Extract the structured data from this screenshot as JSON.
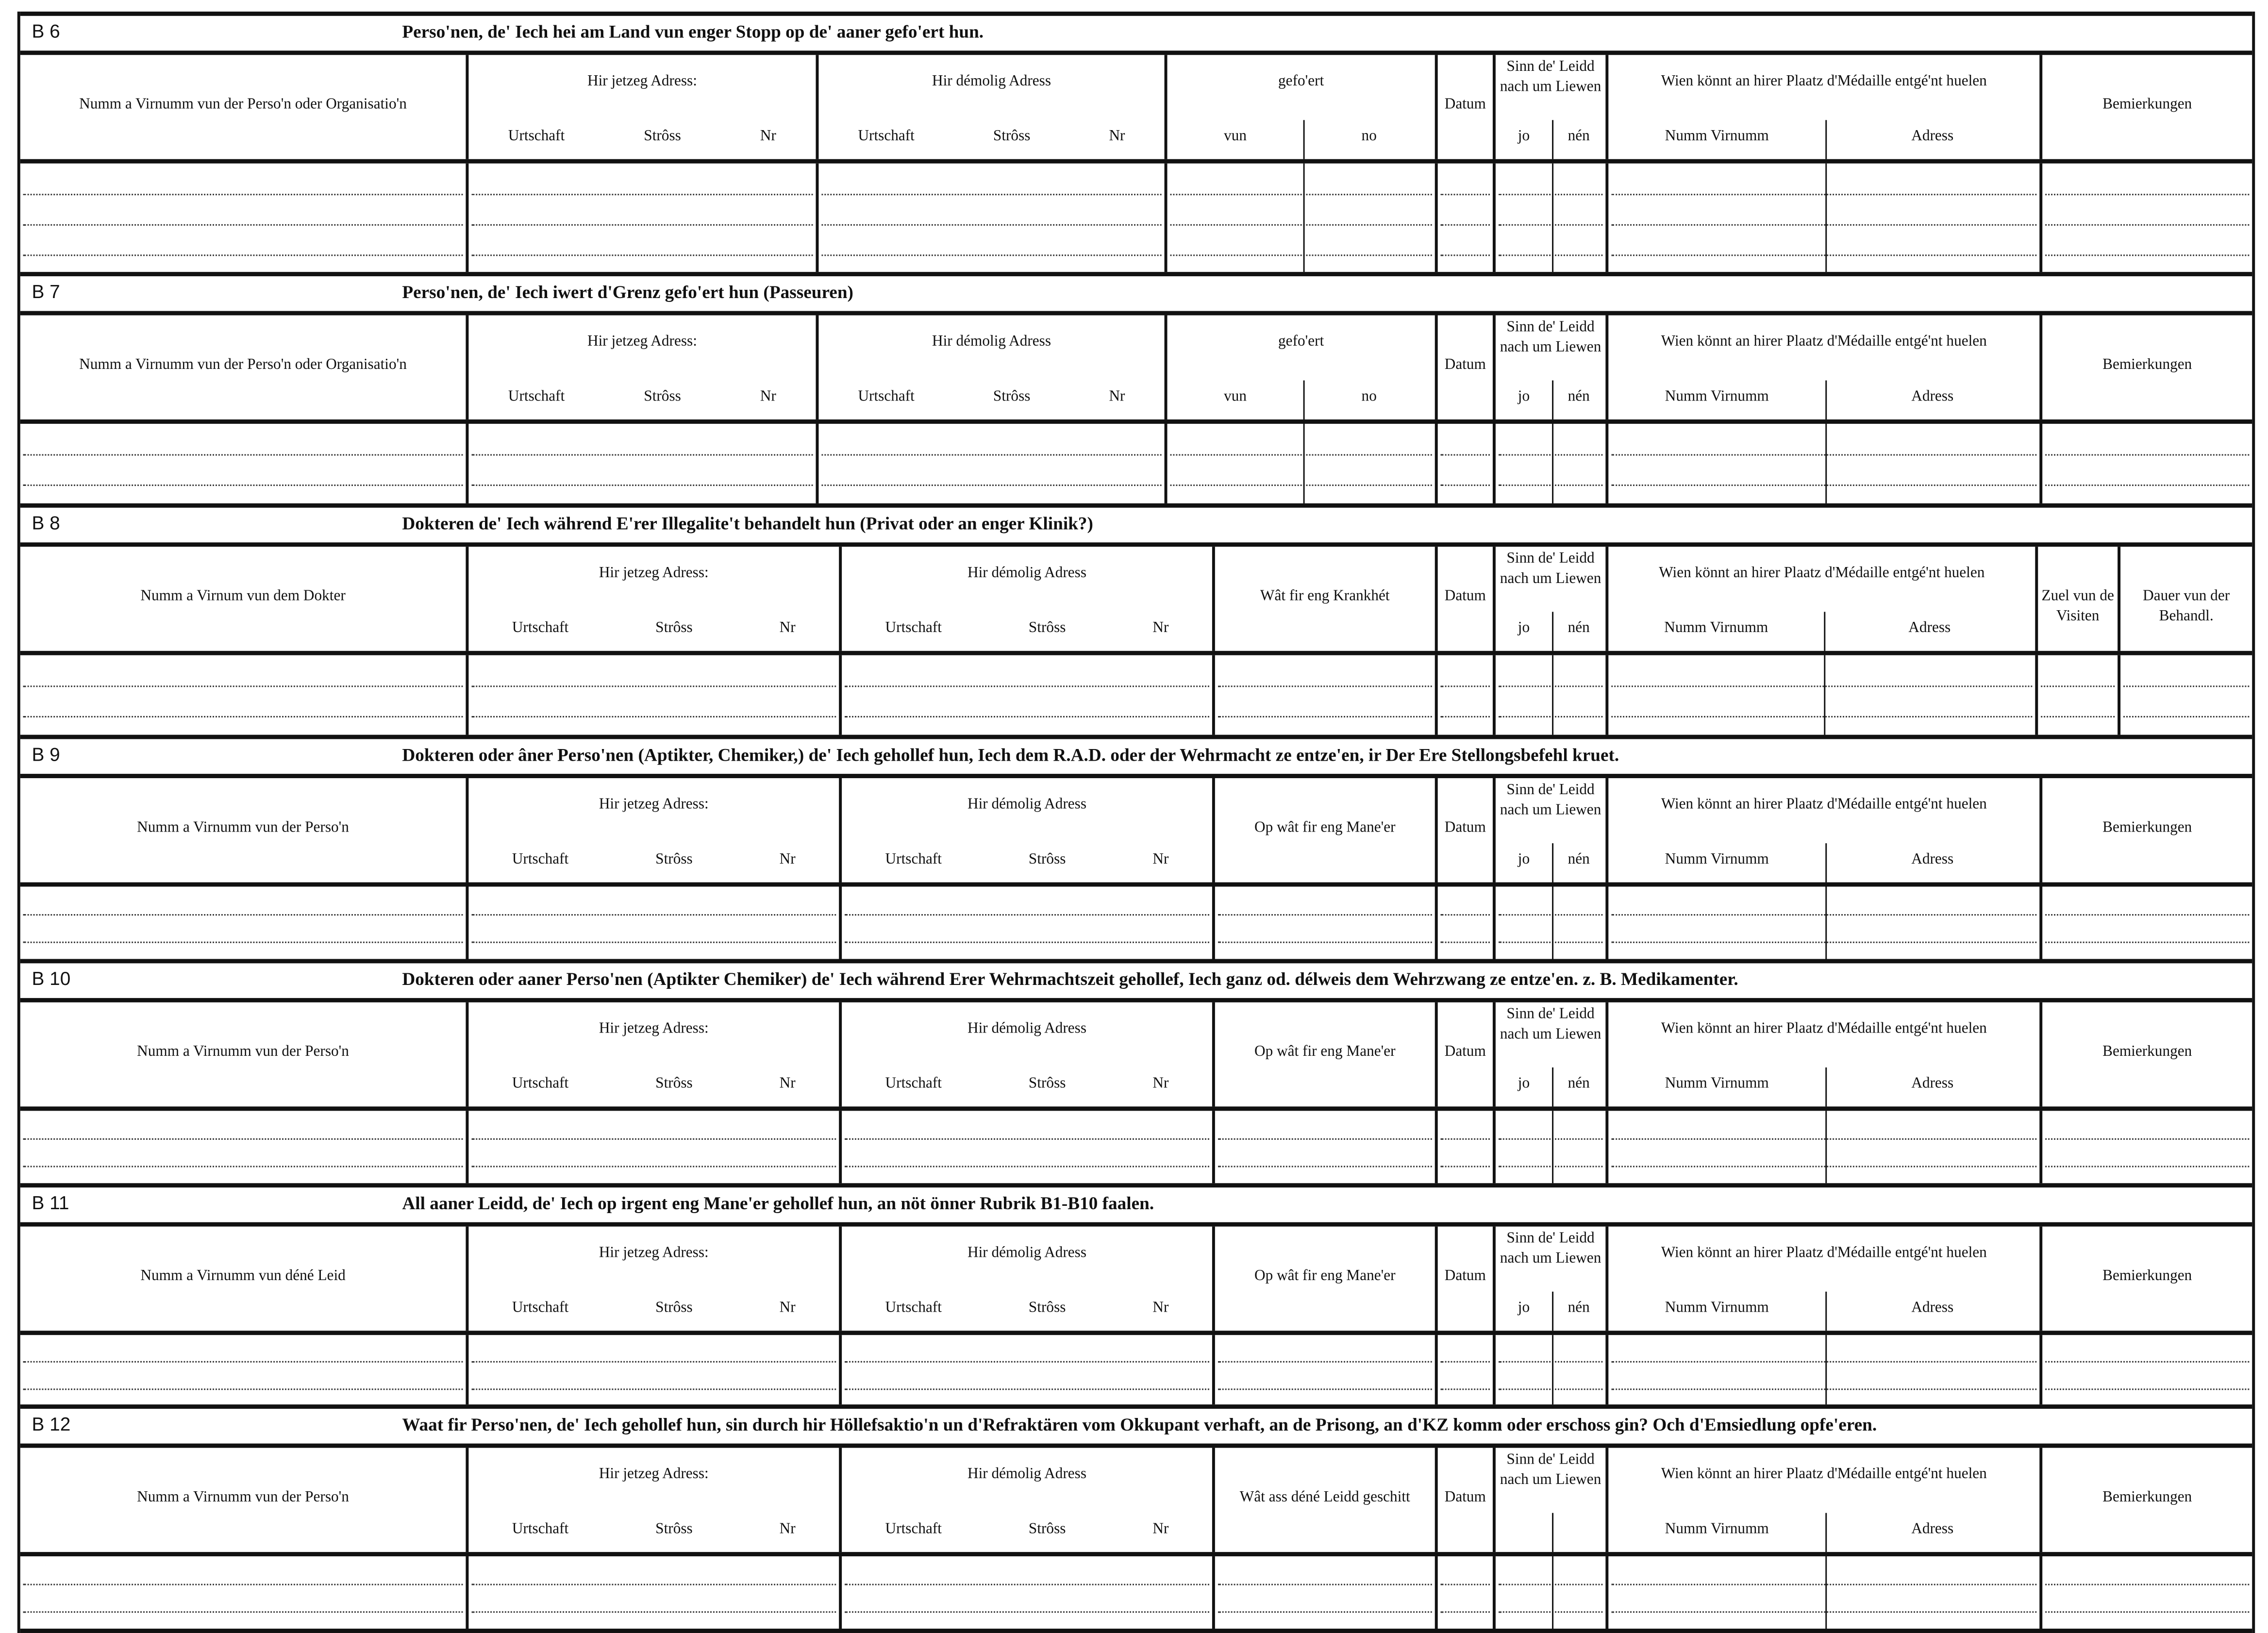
{
  "sections": [
    {
      "code": "B 6",
      "title": "Perso'nen, de' Iech hei am Land vun enger Stopp  op de' aaner gefo'ert hun.",
      "layout": "A",
      "lines": 3,
      "columns": [
        {
          "label": "Numm a Virnumm vun der Perso'n oder Organisatio'n"
        },
        {
          "label": "Hir jetzeg Adress:",
          "subs": [
            "Urtschaft",
            "Strôss",
            "Nr"
          ]
        },
        {
          "label": "Hir démolig Adress",
          "subs": [
            "Urtschaft",
            "Strôss",
            "Nr"
          ]
        },
        {
          "label": "gefo'ert",
          "halves": [
            "vun",
            "no"
          ]
        },
        {
          "label": "Datum"
        },
        {
          "label": "Sinn de' Leidd nach um Liewen",
          "halves": [
            "jo",
            "nén"
          ]
        },
        {
          "label": "Wien könnt an hirer Plaatz d'Médaille entgé'nt huelen",
          "halves": [
            "Numm      Virnumm",
            "Adress"
          ]
        },
        {
          "label": "Bemierkungen"
        }
      ]
    },
    {
      "code": "B 7",
      "title": "Perso'nen, de' Iech iwert d'Grenz gefo'ert hun (Passeuren)",
      "layout": "A",
      "lines": 2,
      "columns": [
        {
          "label": "Numm a Virnumm vun der Perso'n oder Organisatio'n"
        },
        {
          "label": "Hir jetzeg Adress:",
          "subs": [
            "Urtschaft",
            "Strôss",
            "Nr"
          ]
        },
        {
          "label": "Hir démolig Adress",
          "subs": [
            "Urtschaft",
            "Strôss",
            "Nr"
          ]
        },
        {
          "label": "gefo'ert",
          "halves": [
            "vun",
            "no"
          ]
        },
        {
          "label": "Datum"
        },
        {
          "label": "Sinn de' Leidd nach um Liewen",
          "halves": [
            "jo",
            "nén"
          ]
        },
        {
          "label": "Wien könnt an hirer Plaatz d'Médaille entgé'nt huelen",
          "halves": [
            "Numm      Virnumm",
            "Adress"
          ]
        },
        {
          "label": "Bemierkungen"
        }
      ]
    },
    {
      "code": "B 8",
      "title": "Dokteren de' Iech während E'rer Illegalite't behandelt hun (Privat oder an enger Klinik?)",
      "layout": "B",
      "lines": 2,
      "columns": [
        {
          "label": "Numm a Virnum vun dem Dokter"
        },
        {
          "label": "Hir jetzeg Adress:",
          "subs": [
            "Urtschaft",
            "Strôss",
            "Nr"
          ]
        },
        {
          "label": "Hir démolig Adress",
          "subs": [
            "Urtschaft",
            "Strôss",
            "Nr"
          ]
        },
        {
          "label": "Wât fir eng Krankhét"
        },
        {
          "label": "Datum"
        },
        {
          "label": "Sinn de' Leidd nach um Liewen",
          "halves": [
            "jo",
            "nén"
          ]
        },
        {
          "label": "Wien könnt an hirer Plaatz d'Médaille entgé'nt huelen",
          "halves": [
            "Numm      Virnumm",
            "Adress"
          ]
        },
        {
          "label": "Zuel vun de Visiten"
        },
        {
          "label": "Dauer vun der Behandl."
        }
      ]
    },
    {
      "code": "B 9",
      "title": "Dokteren oder âner Perso'nen (Aptikter, Chemiker,) de' Iech gehollef hun, Iech dem R.A.D. oder der Wehrmacht ze entze'en, ir Der Ere Stellongsbefehl kruet.",
      "layout": "C",
      "lines": 2,
      "columns": [
        {
          "label": "Numm a Virnumm vun der Perso'n"
        },
        {
          "label": "Hir jetzeg Adress:",
          "subs": [
            "Urtschaft",
            "Strôss",
            "Nr"
          ]
        },
        {
          "label": "Hir démolig Adress",
          "subs": [
            "Urtschaft",
            "Strôss",
            "Nr"
          ]
        },
        {
          "label": "Op wât fir eng Mane'er"
        },
        {
          "label": "Datum"
        },
        {
          "label": "Sinn de' Leidd nach um Liewen",
          "halves": [
            "jo",
            "nén"
          ]
        },
        {
          "label": "Wien könnt an hirer Plaatz d'Médaille entgé'nt huelen",
          "halves": [
            "Numm      Virnumm",
            "Adress"
          ]
        },
        {
          "label": "Bemierkungen"
        }
      ]
    },
    {
      "code": "B 10",
      "title": "Dokteren oder aaner Perso'nen (Aptikter Chemiker) de' Iech während Erer Wehrmachtszeit gehollef, Iech ganz od. délweis dem Wehrzwang ze entze'en. z. B. Medikamenter.",
      "layout": "C",
      "lines": 2,
      "columns": [
        {
          "label": "Numm a Virnumm vun der Perso'n"
        },
        {
          "label": "Hir jetzeg Adress:",
          "subs": [
            "Urtschaft",
            "Strôss",
            "Nr"
          ]
        },
        {
          "label": "Hir démolig Adress",
          "subs": [
            "Urtschaft",
            "Strôss",
            "Nr"
          ]
        },
        {
          "label": "Op wât fir eng Mane'er"
        },
        {
          "label": "Datum"
        },
        {
          "label": "Sinn de' Leidd nach um Liewen",
          "halves": [
            "jo",
            "nén"
          ]
        },
        {
          "label": "Wien könnt an hirer Plaatz d'Médaille entgé'nt huelen",
          "halves": [
            "Numm      Virnumm",
            "Adress"
          ]
        },
        {
          "label": "Bemierkungen"
        }
      ]
    },
    {
      "code": "B 11",
      "title": "All aaner Leidd, de' Iech op irgent eng Mane'er  gehollef hun, an nöt önner Rubrik B1-B10 faalen.",
      "layout": "C",
      "lines": 2,
      "columns": [
        {
          "label": "Numm a Virnumm vun déné Leid"
        },
        {
          "label": "Hir jetzeg Adress:",
          "subs": [
            "Urtschaft",
            "Strôss",
            "Nr"
          ]
        },
        {
          "label": "Hir démolig Adress",
          "subs": [
            "Urtschaft",
            "Strôss",
            "Nr"
          ]
        },
        {
          "label": "Op wât fir eng Mane'er"
        },
        {
          "label": "Datum"
        },
        {
          "label": "Sinn de' Leidd nach um Liewen",
          "halves": [
            "jo",
            "nén"
          ]
        },
        {
          "label": "Wien könnt an hirer Plaatz d'Médaille entgé'nt huelen",
          "halves": [
            "Numm      Virnumm",
            "Adress"
          ]
        },
        {
          "label": "Bemierkungen"
        }
      ]
    },
    {
      "code": "B 12",
      "title": "Waat fir Perso'nen, de' Iech gehollef hun, sin durch hir Höllefsaktio'n un d'Refraktären vom Okkupant verhaft, an de Prisong, an d'KZ komm oder  erschoss gin? Och d'Emsiedlung opfe'eren.",
      "layout": "C",
      "lines": 2,
      "columns": [
        {
          "label": "Numm a Virnumm vun der Perso'n"
        },
        {
          "label": "Hir jetzeg Adress:",
          "subs": [
            "Urtschaft",
            "Strôss",
            "Nr"
          ]
        },
        {
          "label": "Hir démolig Adress",
          "subs": [
            "Urtschaft",
            "Strôss",
            "Nr"
          ]
        },
        {
          "label": "Wât ass déné Leidd geschitt"
        },
        {
          "label": "Datum"
        },
        {
          "label": "Sinn de' Leidd nach um Liewen",
          "halves": [
            "",
            ""
          ]
        },
        {
          "label": "Wien könnt an hirer Plaatz d'Médaille entgé'nt huelen",
          "halves": [
            "Numm      Virnumm",
            "Adress"
          ]
        },
        {
          "label": "Bemierkungen"
        }
      ]
    }
  ]
}
